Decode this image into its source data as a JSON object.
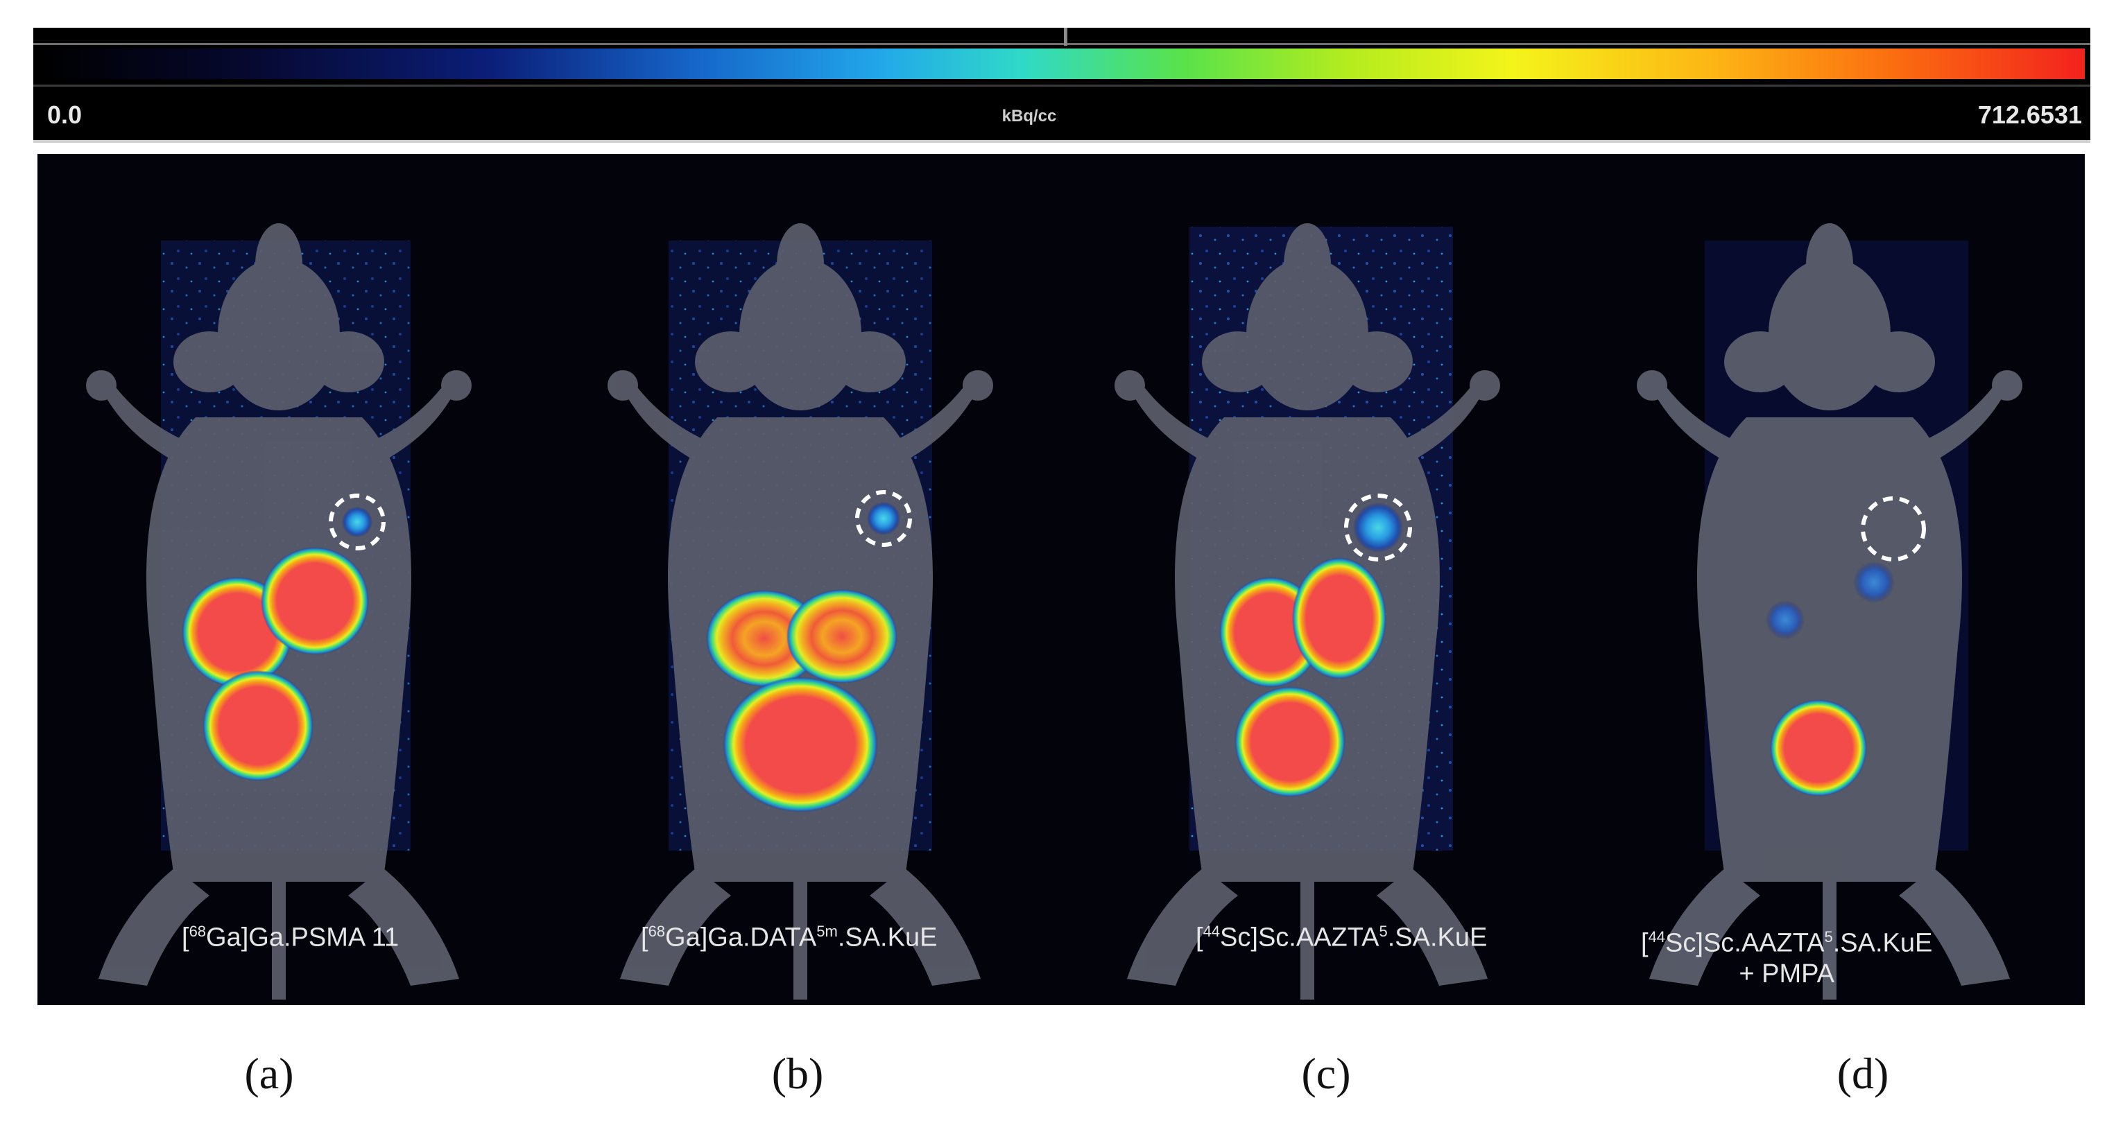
{
  "colorbar": {
    "min_label": "0.0",
    "unit_label": "kBq/cc",
    "max_label": "712.6531",
    "colormap": [
      "#000000",
      "#0b1e78",
      "#22a6ea",
      "#5ae24a",
      "#f4f41a",
      "#fb6a10",
      "#f2221e"
    ]
  },
  "panels": [
    {
      "letter": "(a)",
      "label_prefix": "[",
      "label_sup1": "68",
      "label_main": "Ga]Ga.PSMA 11",
      "label_sup2": "",
      "label_tail": "",
      "label_line2": ""
    },
    {
      "letter": "(b)",
      "label_prefix": "[",
      "label_sup1": "68",
      "label_main": "Ga]Ga.DATA",
      "label_sup2": "5m",
      "label_tail": ".SA.KuE",
      "label_line2": ""
    },
    {
      "letter": "(c)",
      "label_prefix": "[",
      "label_sup1": "44",
      "label_main": "Sc]Sc.AAZTA",
      "label_sup2": "5",
      "label_tail": ".SA.KuE",
      "label_line2": ""
    },
    {
      "letter": "(d)",
      "label_prefix": "[",
      "label_sup1": "44",
      "label_main": "Sc]Sc.AAZTA",
      "label_sup2": "5",
      "label_tail": ".SA.KuE",
      "label_line2": "+ PMPA"
    }
  ]
}
